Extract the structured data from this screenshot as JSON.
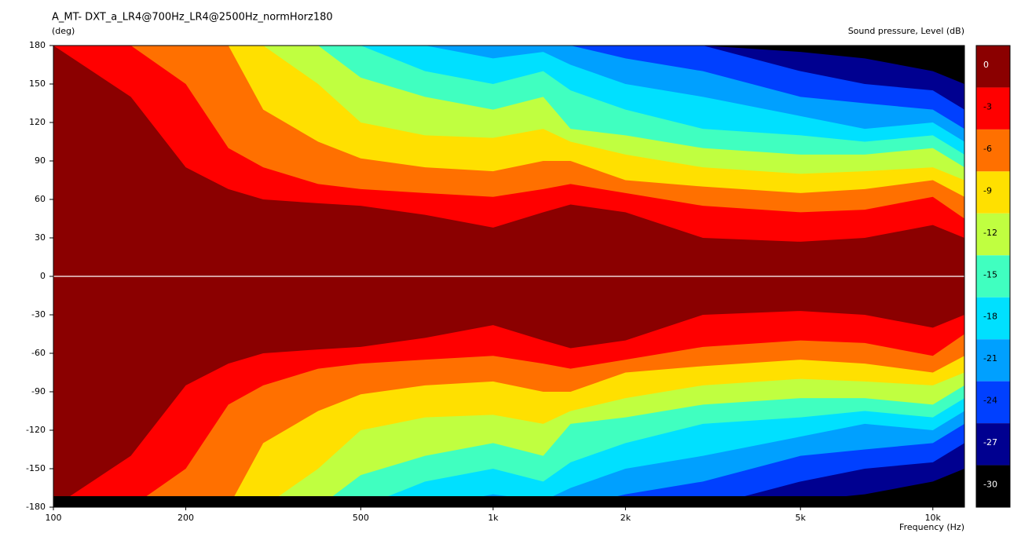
{
  "chart_data": {
    "type": "contour",
    "title": "A_MT- DXT_a_LR4@700Hz_LR4@2500Hz_normHorz180",
    "y_label": "(deg)",
    "x_label": "Frequency  (Hz)",
    "colorbar_title": "Sound pressure, Level  (dB)",
    "log_x": true,
    "xlim": [
      100,
      11800
    ],
    "xticks": [
      100,
      200,
      500,
      {
        "value": 1000,
        "label": "1k"
      },
      {
        "value": 2000,
        "label": "2k"
      },
      {
        "value": 5000,
        "label": "5k"
      },
      {
        "value": 10000,
        "label": "10k"
      }
    ],
    "ylim": [
      -180,
      180
    ],
    "yticks": [
      -180,
      -150,
      -120,
      -90,
      -60,
      -30,
      0,
      30,
      60,
      90,
      120,
      150,
      180
    ],
    "mirrored": true,
    "levels": [
      0,
      -3,
      -6,
      -9,
      -12,
      -15,
      -18,
      -21,
      -24,
      -27,
      -30
    ],
    "colors": [
      "#8b0000",
      "#ff0000",
      "#ff7000",
      "#ffe000",
      "#c0ff40",
      "#40ffc0",
      "#00e0ff",
      "#00a0ff",
      "#0040ff",
      "#000090",
      "#000000"
    ],
    "x": [
      100,
      150,
      200,
      250,
      300,
      400,
      500,
      700,
      1000,
      1300,
      1500,
      2000,
      3000,
      5000,
      7000,
      10000,
      11800
    ],
    "contours": [
      [
        180,
        140,
        85,
        68,
        60,
        57,
        55,
        48,
        38,
        50,
        56,
        50,
        30,
        27,
        30,
        40,
        30
      ],
      [
        180,
        180,
        150,
        100,
        85,
        72,
        68,
        65,
        62,
        68,
        72,
        65,
        55,
        50,
        52,
        62,
        45
      ],
      [
        180,
        180,
        180,
        180,
        130,
        105,
        92,
        85,
        82,
        90,
        90,
        75,
        70,
        65,
        68,
        75,
        62
      ],
      [
        180,
        180,
        180,
        180,
        180,
        150,
        120,
        110,
        108,
        115,
        105,
        95,
        85,
        80,
        82,
        85,
        75
      ],
      [
        180,
        180,
        180,
        180,
        180,
        180,
        155,
        140,
        130,
        140,
        115,
        110,
        100,
        95,
        95,
        100,
        85
      ],
      [
        180,
        180,
        180,
        180,
        180,
        180,
        180,
        160,
        150,
        160,
        145,
        130,
        115,
        110,
        105,
        110,
        95
      ],
      [
        180,
        180,
        180,
        180,
        180,
        180,
        180,
        180,
        170,
        175,
        165,
        150,
        140,
        125,
        115,
        120,
        105
      ],
      [
        180,
        180,
        180,
        180,
        180,
        180,
        180,
        180,
        180,
        180,
        180,
        170,
        160,
        140,
        135,
        130,
        115
      ],
      [
        180,
        180,
        180,
        180,
        180,
        180,
        180,
        180,
        180,
        180,
        180,
        180,
        180,
        160,
        150,
        145,
        130
      ],
      [
        180,
        180,
        180,
        180,
        180,
        180,
        180,
        180,
        180,
        180,
        180,
        180,
        180,
        175,
        170,
        160,
        150
      ]
    ]
  }
}
